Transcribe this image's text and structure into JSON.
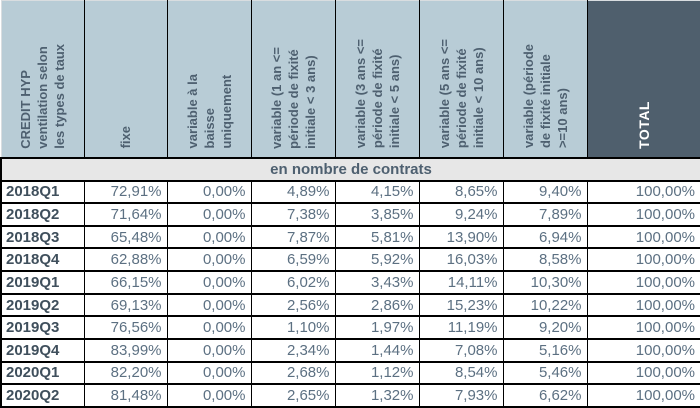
{
  "title": "CREDIT HYP ventilation selon les types de taux",
  "colors": {
    "header_bg": "#b8ccd6",
    "total_bg": "#4f5f6d",
    "header_text": "#4e6070",
    "total_text": "#ffffff",
    "subheader_bg": "#e7e7e7",
    "data_text": "#5c7082",
    "row_label_text": "#3f4f5c",
    "grid_border": "#000000"
  },
  "table": {
    "columns": [
      {
        "id": "credit-hyp",
        "label": "CREDIT HYP\nventilation selon\nles types de taux"
      },
      {
        "id": "fixe",
        "label": "fixe"
      },
      {
        "id": "variable-baisse",
        "label": "variable à la\nbaisse\nuniquement"
      },
      {
        "id": "variable-1-3",
        "label": "variable (1 an <=\npériode de fixité\ninitiale < 3 ans)"
      },
      {
        "id": "variable-3-5",
        "label": "variable (3 ans <=\npériode de fixité\ninitiale < 5 ans)"
      },
      {
        "id": "variable-5-10",
        "label": "variable (5 ans <=\npériode de fixité\ninitiale < 10 ans)"
      },
      {
        "id": "variable-10",
        "label": "variable (période\nde fixité initiale\n>=10 ans)"
      },
      {
        "id": "total",
        "label": "TOTAL"
      }
    ],
    "subheader": "en nombre de contrats",
    "rows": [
      {
        "label": "2018Q1",
        "values": [
          "72,91%",
          "0,00%",
          "4,89%",
          "4,15%",
          "8,65%",
          "9,40%",
          "100,00%"
        ]
      },
      {
        "label": "2018Q2",
        "values": [
          "71,64%",
          "0,00%",
          "7,38%",
          "3,85%",
          "9,24%",
          "7,89%",
          "100,00%"
        ]
      },
      {
        "label": "2018Q3",
        "values": [
          "65,48%",
          "0,00%",
          "7,87%",
          "5,81%",
          "13,90%",
          "6,94%",
          "100,00%"
        ]
      },
      {
        "label": "2018Q4",
        "values": [
          "62,88%",
          "0,00%",
          "6,59%",
          "5,92%",
          "16,03%",
          "8,58%",
          "100,00%"
        ]
      },
      {
        "label": "2019Q1",
        "values": [
          "66,15%",
          "0,00%",
          "6,02%",
          "3,43%",
          "14,11%",
          "10,30%",
          "100,00%"
        ]
      },
      {
        "label": "2019Q2",
        "values": [
          "69,13%",
          "0,00%",
          "2,56%",
          "2,86%",
          "15,23%",
          "10,22%",
          "100,00%"
        ]
      },
      {
        "label": "2019Q3",
        "values": [
          "76,56%",
          "0,00%",
          "1,10%",
          "1,97%",
          "11,19%",
          "9,20%",
          "100,00%"
        ]
      },
      {
        "label": "2019Q4",
        "values": [
          "83,99%",
          "0,00%",
          "2,34%",
          "1,44%",
          "7,08%",
          "5,16%",
          "100,00%"
        ]
      },
      {
        "label": "2020Q1",
        "values": [
          "82,20%",
          "0,00%",
          "2,68%",
          "1,12%",
          "8,54%",
          "5,46%",
          "100,00%"
        ]
      },
      {
        "label": "2020Q2",
        "values": [
          "81,48%",
          "0,00%",
          "2,65%",
          "1,32%",
          "7,93%",
          "6,62%",
          "100,00%"
        ]
      }
    ]
  },
  "chart_data": {
    "type": "table",
    "title": "CREDIT HYP ventilation selon les types de taux",
    "subtitle": "en nombre de contrats",
    "unit": "%",
    "categories": [
      "2018Q1",
      "2018Q2",
      "2018Q3",
      "2018Q4",
      "2019Q1",
      "2019Q2",
      "2019Q3",
      "2019Q4",
      "2020Q1",
      "2020Q2"
    ],
    "series": [
      {
        "name": "fixe",
        "values": [
          72.91,
          71.64,
          65.48,
          62.88,
          66.15,
          69.13,
          76.56,
          83.99,
          82.2,
          81.48
        ]
      },
      {
        "name": "variable à la baisse uniquement",
        "values": [
          0.0,
          0.0,
          0.0,
          0.0,
          0.0,
          0.0,
          0.0,
          0.0,
          0.0,
          0.0
        ]
      },
      {
        "name": "variable (1 an <= période de fixité initiale < 3 ans)",
        "values": [
          4.89,
          7.38,
          7.87,
          6.59,
          6.02,
          2.56,
          1.1,
          2.34,
          2.68,
          2.65
        ]
      },
      {
        "name": "variable (3 ans <= période de fixité initiale < 5 ans)",
        "values": [
          4.15,
          3.85,
          5.81,
          5.92,
          3.43,
          2.86,
          1.97,
          1.44,
          1.12,
          1.32
        ]
      },
      {
        "name": "variable (5 ans <= période de fixité initiale < 10 ans)",
        "values": [
          8.65,
          9.24,
          13.9,
          16.03,
          14.11,
          15.23,
          11.19,
          7.08,
          8.54,
          7.93
        ]
      },
      {
        "name": "variable (période de fixité initiale >=10 ans)",
        "values": [
          9.4,
          7.89,
          6.94,
          8.58,
          10.3,
          10.22,
          9.2,
          5.16,
          5.46,
          6.62
        ]
      },
      {
        "name": "TOTAL",
        "values": [
          100.0,
          100.0,
          100.0,
          100.0,
          100.0,
          100.0,
          100.0,
          100.0,
          100.0,
          100.0
        ]
      }
    ]
  }
}
